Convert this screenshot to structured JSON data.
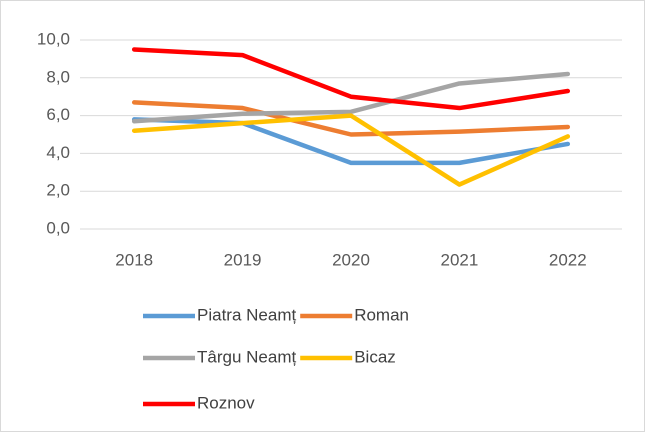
{
  "chart_data": {
    "type": "line",
    "categories": [
      "2018",
      "2019",
      "2020",
      "2021",
      "2022"
    ],
    "series": [
      {
        "name": "Piatra Neamț",
        "color": "#5b9bd5",
        "values": [
          5.8,
          5.6,
          3.5,
          3.5,
          4.5
        ]
      },
      {
        "name": "Roman",
        "color": "#ed7d31",
        "values": [
          6.7,
          6.4,
          5.0,
          5.15,
          5.4
        ]
      },
      {
        "name": "Târgu Neamț",
        "color": "#a5a5a5",
        "values": [
          5.7,
          6.1,
          6.2,
          7.7,
          8.2
        ]
      },
      {
        "name": "Bicaz",
        "color": "#ffc000",
        "values": [
          5.2,
          5.6,
          6.0,
          2.35,
          4.9
        ]
      },
      {
        "name": "Roznov",
        "color": "#ff0000",
        "values": [
          9.5,
          9.2,
          7.0,
          6.4,
          7.3
        ]
      }
    ],
    "ylim": [
      0,
      10
    ],
    "yticks": [
      {
        "value": 0,
        "label": "0,0"
      },
      {
        "value": 2,
        "label": "2,0"
      },
      {
        "value": 4,
        "label": "4,0"
      },
      {
        "value": 6,
        "label": "6,0"
      },
      {
        "value": 8,
        "label": "8,0"
      },
      {
        "value": 10,
        "label": "10,0"
      }
    ],
    "grid": true,
    "legend": "bottom"
  }
}
